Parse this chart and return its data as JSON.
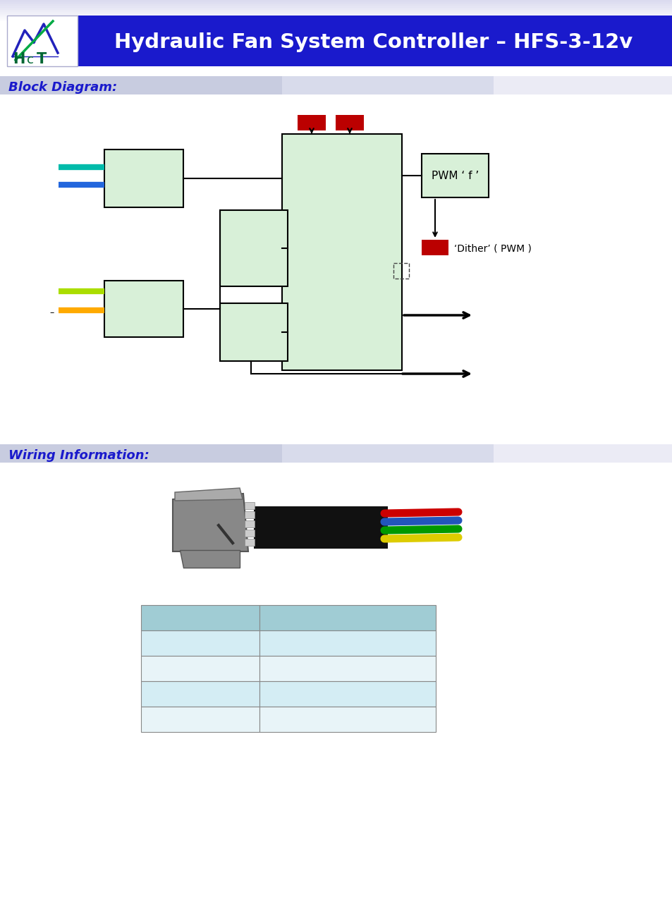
{
  "title": "Hydraulic Fan System Controller – HFS-3-12v",
  "title_color": "#ffffff",
  "header_bg": "#1a1acc",
  "logo_bg": "#ffffff",
  "page_bg": "#ffffff",
  "top_gradient_color": "#c8cce0",
  "section1_label": "Block Diagram:",
  "section2_label": "Wiring Information:",
  "section_label_color": "#1a1acc",
  "section_bg_start": "#c8cce0",
  "section_bg_end": "#e8eaf4",
  "block_fill": "#d8f0d8",
  "block_edge": "#000000",
  "red_fill": "#bb0000",
  "pwm_box_label": "PWM ‘ f ’",
  "dither_label": "‘Dither’ ( PWM )",
  "table_header_bg": "#a0ccd4",
  "table_row_bg1": "#d4edf4",
  "table_row_bg2": "#e8f4f8",
  "table_border": "#888888",
  "wire_colors_connector": [
    "#cc0000",
    "#2255bb",
    "#009900",
    "#ddcc00"
  ]
}
